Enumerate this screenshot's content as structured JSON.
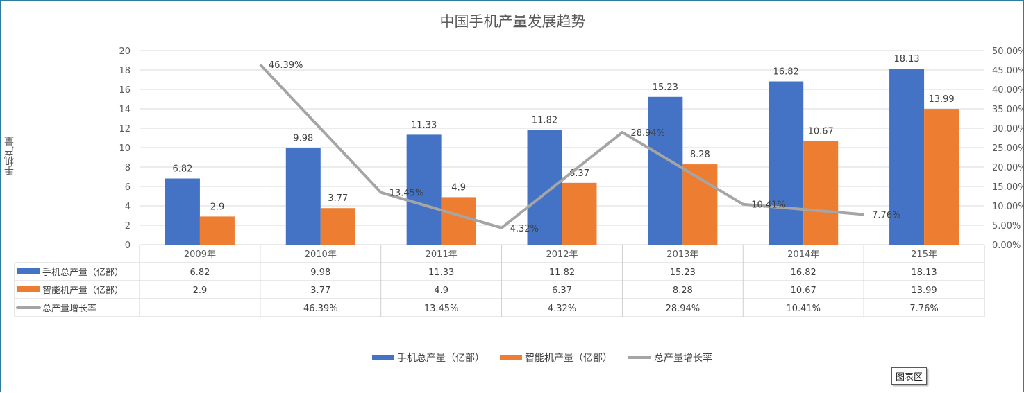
{
  "chart_data": {
    "type": "bar",
    "title": "中国手机产量发展趋势",
    "ylabel": "手机产量",
    "categories": [
      "2009年",
      "2010年",
      "2011年",
      "2012年",
      "2013年",
      "2014年",
      "215年"
    ],
    "ylim": [
      0,
      20
    ],
    "y_ticks": [
      "0",
      "2",
      "4",
      "6",
      "8",
      "10",
      "12",
      "14",
      "16",
      "18",
      "20"
    ],
    "y2lim": [
      0,
      0.5
    ],
    "y2_ticks": [
      "0.00%",
      "5.00%",
      "10.00%",
      "15.00%",
      "20.00%",
      "25.00%",
      "30.00%",
      "35.00%",
      "40.00%",
      "45.00%",
      "50.00%"
    ],
    "grid": true,
    "legend_position": "bottom",
    "data_table": true,
    "series": [
      {
        "name": "手机总产量（亿部）",
        "type": "bar",
        "color": "#4472c4",
        "axis": "left",
        "values": [
          6.82,
          9.98,
          11.33,
          11.82,
          15.23,
          16.82,
          18.13
        ],
        "labels": [
          "6.82",
          "9.98",
          "11.33",
          "11.82",
          "15.23",
          "16.82",
          "18.13"
        ]
      },
      {
        "name": "智能机产量（亿部）",
        "type": "bar",
        "color": "#ed7d31",
        "axis": "left",
        "values": [
          2.9,
          3.77,
          4.9,
          6.37,
          8.28,
          10.67,
          13.99
        ],
        "labels": [
          "2.9",
          "3.77",
          "4.9",
          "6.37",
          "8.28",
          "10.67",
          "13.99"
        ]
      },
      {
        "name": "总产量增长率",
        "type": "line",
        "color": "#a5a5a5",
        "axis": "right",
        "values": [
          null,
          0.4639,
          0.1345,
          0.0432,
          0.2894,
          0.1041,
          0.0776
        ],
        "labels": [
          "",
          "46.39%",
          "13.45%",
          "4.32%",
          "28.94%",
          "10.41%",
          "7.76%"
        ]
      }
    ]
  },
  "ui": {
    "chart_area_tooltip": "图表区"
  }
}
